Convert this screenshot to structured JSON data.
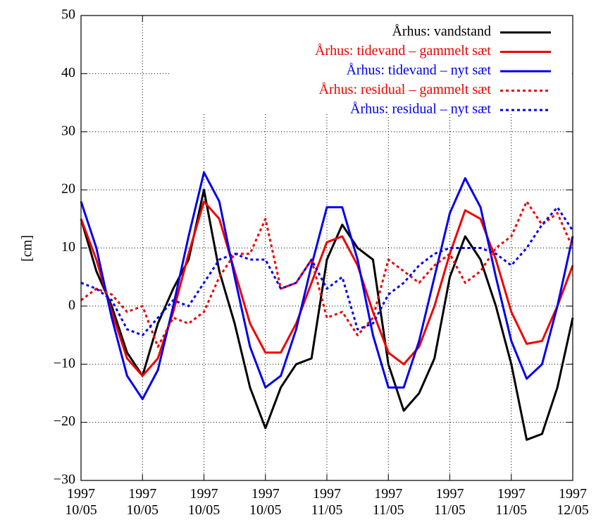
{
  "chart_data": {
    "type": "line",
    "y_label": "[cm]",
    "xlim": [
      0,
      8
    ],
    "xticks": [
      {
        "value": 0,
        "label": "1997 10/05"
      },
      {
        "value": 1,
        "label": "1997 10/05"
      },
      {
        "value": 2,
        "label": "1997 10/05"
      },
      {
        "value": 3,
        "label": "1997 10/05"
      },
      {
        "value": 4,
        "label": "1997 11/05"
      },
      {
        "value": 5,
        "label": "1997 11/05"
      },
      {
        "value": 6,
        "label": "1997 11/05"
      },
      {
        "value": 7,
        "label": "1997 11/05"
      },
      {
        "value": 8,
        "label": "1997 12/05"
      }
    ],
    "ylim": [
      -30,
      50
    ],
    "yticks": [
      {
        "value": -30,
        "label": "−30"
      },
      {
        "value": -20,
        "label": "−20"
      },
      {
        "value": -10,
        "label": "−10"
      },
      0,
      10,
      20,
      30,
      40,
      50
    ],
    "grid": true,
    "legend": "top-right",
    "x": [
      0,
      0.25,
      0.5,
      0.75,
      1,
      1.25,
      1.5,
      1.75,
      2,
      2.25,
      2.5,
      2.75,
      3,
      3.25,
      3.5,
      3.75,
      4,
      4.25,
      4.5,
      4.75,
      5,
      5.25,
      5.5,
      5.75,
      6,
      6.25,
      6.5,
      6.75,
      7,
      7.25,
      7.5,
      7.75,
      8
    ],
    "series": [
      {
        "name": "Århus: vandstand",
        "color": "#000000",
        "style": "solid",
        "values": [
          15,
          6,
          0,
          -8,
          -12,
          -3,
          3,
          8,
          20,
          6,
          -3,
          -14,
          -21,
          -14,
          -10,
          -9,
          8,
          14,
          10,
          8,
          -10,
          -18,
          -15,
          -9,
          5,
          12,
          8,
          0,
          -10,
          -23,
          -22,
          -14,
          -2
        ]
      },
      {
        "name": "Århus: tidevand – gammelt sæt",
        "color": "#ee0000",
        "style": "solid",
        "values": [
          15,
          8,
          -1,
          -9,
          -12,
          -9,
          -1,
          9,
          18,
          15,
          6,
          -3,
          -8,
          -8,
          -3,
          4,
          11,
          12,
          7,
          -1,
          -8,
          -10,
          -7,
          0,
          9,
          16.5,
          15,
          8,
          -1,
          -6.5,
          -6,
          0,
          7
        ]
      },
      {
        "name": "Århus: tidevand – nyt sæt",
        "color": "#0000ee",
        "style": "solid",
        "values": [
          18,
          10,
          -2,
          -12,
          -16,
          -11,
          0,
          12,
          23,
          18,
          5,
          -7,
          -14,
          -12,
          -4,
          7,
          17,
          17,
          8,
          -5,
          -14,
          -14,
          -6,
          5,
          16,
          22,
          17,
          5,
          -6,
          -12.5,
          -10,
          0,
          12
        ]
      },
      {
        "name": "Århus: residual – gammelt sæt",
        "color": "#ee0000",
        "style": "dashed",
        "values": [
          1,
          3,
          2,
          -1,
          0,
          -7,
          -2,
          -3,
          -1,
          5,
          9,
          9,
          15,
          3,
          4,
          8,
          -2,
          -1,
          -5,
          -2,
          8,
          6,
          4,
          7,
          9,
          4,
          6,
          10,
          12,
          18,
          14,
          16,
          10
        ]
      },
      {
        "name": "Århus: residual – nyt sæt",
        "color": "#0000ee",
        "style": "dashed",
        "values": [
          4,
          3,
          1,
          -4,
          -5,
          -2,
          1,
          0,
          4,
          8,
          9,
          8,
          8,
          3,
          4,
          8,
          3,
          5,
          -4,
          -3,
          2,
          4,
          7,
          9,
          10,
          10,
          10,
          9,
          7,
          10,
          14,
          17,
          13
        ]
      }
    ]
  }
}
